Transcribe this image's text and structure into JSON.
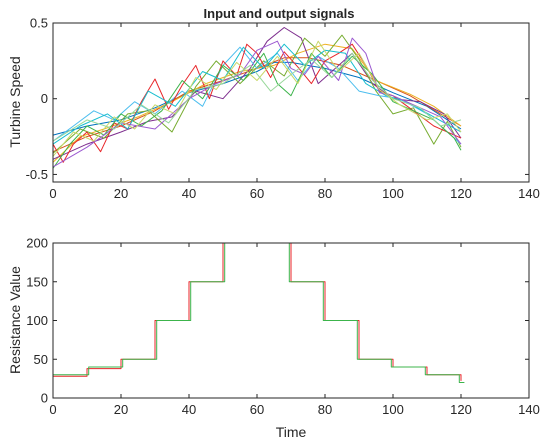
{
  "chart_data": [
    {
      "type": "line",
      "title": "Input and output signals",
      "xlabel": "",
      "ylabel": "Turbine Speed",
      "xlim": [
        0,
        140
      ],
      "ylim": [
        -0.55,
        0.5
      ],
      "xticks": [
        0,
        20,
        40,
        60,
        80,
        100,
        120,
        140
      ],
      "yticks": [
        -0.5,
        0,
        0.5
      ],
      "grid": false,
      "series": [
        {
          "color": "#0072BD",
          "x": [
            0,
            10,
            20,
            30,
            40,
            50,
            60,
            65,
            70,
            80,
            90,
            100,
            110,
            120
          ],
          "y": [
            -0.24,
            -0.18,
            -0.14,
            -0.06,
            0.04,
            0.1,
            0.18,
            0.24,
            0.24,
            0.2,
            0.14,
            0.04,
            -0.05,
            -0.2
          ]
        },
        {
          "color": "#D95319",
          "x": [
            0,
            10,
            20,
            30,
            40,
            50,
            60,
            68,
            75,
            85,
            95,
            105,
            120
          ],
          "y": [
            -0.35,
            -0.25,
            -0.18,
            -0.08,
            0.05,
            0.12,
            0.2,
            0.27,
            0.27,
            0.22,
            0.12,
            0.02,
            -0.18
          ]
        },
        {
          "color": "#EDB120",
          "x": [
            0,
            8,
            15,
            25,
            35,
            45,
            55,
            65,
            72,
            80,
            88,
            95,
            105,
            112,
            120
          ],
          "y": [
            -0.42,
            -0.25,
            -0.2,
            -0.12,
            -0.02,
            0.1,
            0.18,
            0.22,
            0.3,
            0.36,
            0.33,
            0.12,
            0.03,
            -0.05,
            -0.18
          ]
        },
        {
          "color": "#7E2F8E",
          "x": [
            0,
            10,
            20,
            28,
            35,
            42,
            50,
            58,
            63,
            68,
            73,
            78,
            82,
            88,
            94,
            100,
            108,
            115,
            120
          ],
          "y": [
            -0.4,
            -0.3,
            -0.22,
            -0.15,
            -0.12,
            0.05,
            0.0,
            0.2,
            0.38,
            0.47,
            0.4,
            0.1,
            0.18,
            0.3,
            0.1,
            0.0,
            -0.02,
            -0.1,
            -0.26
          ]
        },
        {
          "color": "#77AC30",
          "x": [
            0,
            8,
            15,
            22,
            28,
            35,
            42,
            48,
            55,
            62,
            68,
            74,
            80,
            85,
            90,
            95,
            100,
            106,
            112,
            116,
            120
          ],
          "y": [
            -0.36,
            -0.2,
            -0.26,
            -0.1,
            -0.08,
            -0.22,
            0.08,
            0.25,
            0.1,
            0.25,
            0.15,
            0.4,
            0.28,
            0.42,
            0.26,
            0.05,
            -0.1,
            -0.06,
            -0.3,
            -0.15,
            -0.32
          ]
        },
        {
          "color": "#4DBEEE",
          "x": [
            0,
            6,
            12,
            18,
            24,
            30,
            38,
            44,
            50,
            55,
            60,
            66,
            72,
            78,
            84,
            90,
            96,
            102,
            110,
            120
          ],
          "y": [
            -0.28,
            -0.18,
            -0.08,
            -0.14,
            -0.02,
            -0.1,
            0.05,
            -0.05,
            0.22,
            0.34,
            0.2,
            0.3,
            0.12,
            0.28,
            0.2,
            0.05,
            0.02,
            0.0,
            -0.1,
            -0.3
          ]
        },
        {
          "color": "#E8262A",
          "x": [
            0,
            3,
            6,
            10,
            14,
            18,
            22,
            26,
            30,
            34,
            38,
            42,
            46,
            50,
            54,
            57,
            60,
            64,
            68,
            72,
            76,
            80,
            84,
            88,
            92,
            96,
            100,
            106,
            112,
            120
          ],
          "y": [
            -0.3,
            -0.42,
            -0.3,
            -0.22,
            -0.35,
            -0.16,
            -0.2,
            -0.02,
            0.13,
            -0.07,
            0.09,
            0.22,
            0.0,
            0.25,
            0.15,
            0.36,
            0.3,
            0.14,
            0.31,
            0.21,
            0.1,
            0.25,
            0.3,
            0.36,
            0.22,
            0.05,
            0.02,
            -0.08,
            -0.18,
            -0.26
          ]
        },
        {
          "color": "#3CB44B",
          "x": [
            0,
            5,
            10,
            15,
            20,
            26,
            32,
            38,
            44,
            50,
            56,
            62,
            66,
            70,
            76,
            82,
            88,
            94,
            100,
            106,
            112,
            118,
            120
          ],
          "y": [
            -0.46,
            -0.3,
            -0.18,
            -0.24,
            -0.1,
            -0.18,
            -0.08,
            0.12,
            0.0,
            0.22,
            0.12,
            0.3,
            0.1,
            0.02,
            0.3,
            0.14,
            0.28,
            0.16,
            -0.02,
            -0.08,
            -0.14,
            -0.26,
            -0.34
          ]
        },
        {
          "color": "#17BECF",
          "x": [
            0,
            8,
            16,
            22,
            28,
            36,
            44,
            50,
            56,
            62,
            68,
            74,
            80,
            86,
            92,
            98,
            104,
            112,
            120
          ],
          "y": [
            -0.3,
            -0.18,
            -0.1,
            -0.2,
            0.05,
            -0.05,
            0.18,
            0.12,
            0.34,
            0.2,
            0.36,
            0.22,
            0.32,
            0.3,
            0.1,
            0.02,
            -0.02,
            -0.12,
            -0.22
          ]
        },
        {
          "color": "#9B59D0",
          "x": [
            0,
            10,
            20,
            30,
            40,
            48,
            55,
            60,
            66,
            70,
            74,
            78,
            84,
            88,
            92,
            96,
            100,
            108,
            114,
            120
          ],
          "y": [
            -0.45,
            -0.32,
            -0.16,
            -0.2,
            0.0,
            0.1,
            0.16,
            0.32,
            0.38,
            0.2,
            0.16,
            0.28,
            0.12,
            0.4,
            0.3,
            0.04,
            0.02,
            -0.06,
            -0.12,
            -0.3
          ]
        },
        {
          "color": "#C8D86A",
          "x": [
            0,
            6,
            12,
            18,
            24,
            30,
            36,
            42,
            48,
            54,
            60,
            66,
            72,
            78,
            84,
            90,
            96,
            102,
            110,
            116,
            120
          ],
          "y": [
            -0.38,
            -0.22,
            -0.28,
            -0.12,
            -0.2,
            -0.04,
            -0.1,
            0.14,
            0.06,
            0.24,
            0.12,
            0.28,
            0.1,
            0.38,
            0.18,
            0.3,
            0.06,
            -0.04,
            -0.14,
            -0.1,
            -0.22
          ]
        },
        {
          "color": "#98D89A",
          "x": [
            0,
            10,
            18,
            26,
            34,
            42,
            50,
            58,
            64,
            70,
            76,
            82,
            88,
            94,
            100,
            108,
            114,
            120
          ],
          "y": [
            -0.28,
            -0.14,
            -0.2,
            -0.04,
            -0.16,
            0.06,
            0.1,
            0.22,
            0.05,
            0.16,
            0.26,
            0.14,
            0.3,
            0.12,
            0.0,
            -0.06,
            -0.18,
            -0.14
          ]
        }
      ]
    },
    {
      "type": "line",
      "title": "",
      "xlabel": "Time",
      "ylabel": "Resistance Value",
      "xlim": [
        0,
        140
      ],
      "ylim": [
        0,
        200
      ],
      "xticks": [
        0,
        20,
        40,
        60,
        80,
        100,
        120,
        140
      ],
      "yticks": [
        0,
        50,
        100,
        150,
        200
      ],
      "grid": false,
      "series": [
        {
          "color": "#E8262A",
          "x": [
            0,
            10,
            10,
            20,
            20,
            30,
            30,
            40,
            40,
            50,
            50,
            70,
            70,
            80,
            80,
            90,
            90,
            100,
            100,
            110,
            110,
            120,
            120
          ],
          "y": [
            28,
            28,
            38,
            38,
            50,
            50,
            100,
            100,
            150,
            150,
            200,
            200,
            150,
            150,
            100,
            100,
            50,
            50,
            40,
            40,
            30,
            30,
            22
          ]
        },
        {
          "color": "#3CB44B",
          "x": [
            0,
            10.5,
            10.5,
            20.5,
            20.5,
            30.5,
            30.5,
            40.5,
            40.5,
            50.5,
            50.5,
            69.5,
            69.5,
            79.5,
            79.5,
            89.5,
            89.5,
            99.5,
            99.5,
            109.5,
            109.5,
            119.5,
            119.5,
            121
          ],
          "y": [
            30,
            30,
            40,
            40,
            50,
            50,
            100,
            100,
            150,
            150,
            200,
            200,
            150,
            150,
            100,
            100,
            50,
            50,
            40,
            40,
            30,
            30,
            20,
            20
          ]
        }
      ]
    }
  ]
}
